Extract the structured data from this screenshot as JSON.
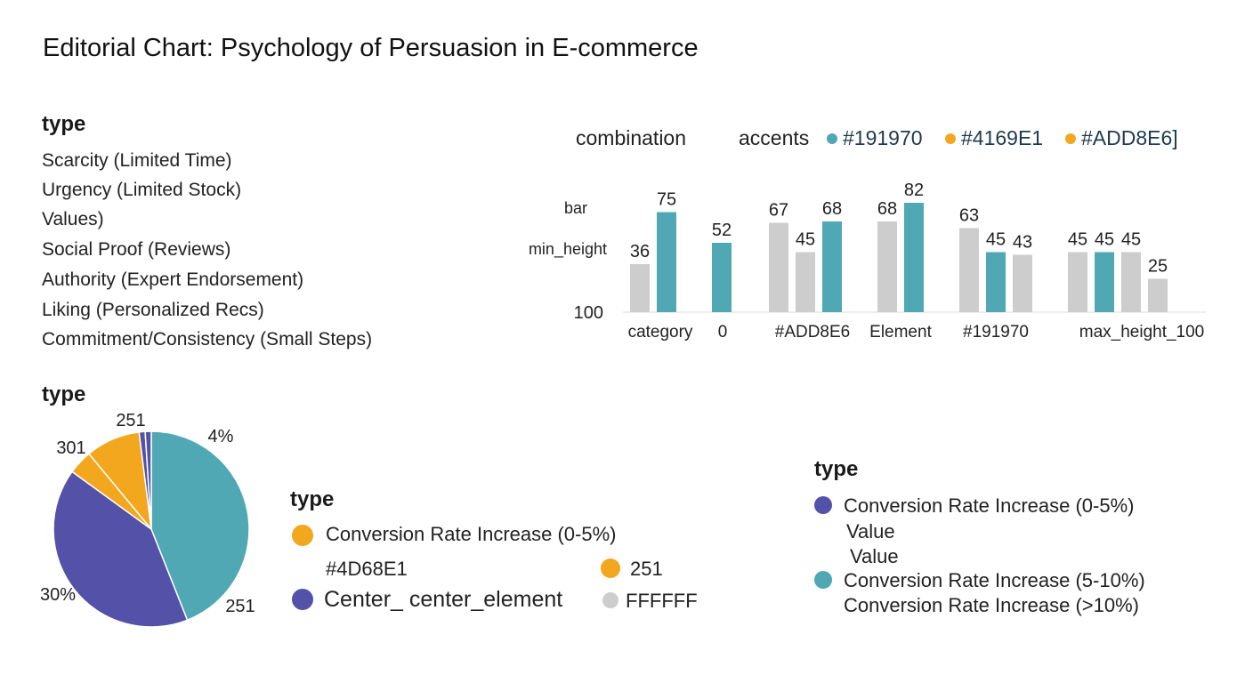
{
  "title": "Editorial Chart: Psychology of Persuasion in E-commerce",
  "colors": {
    "teal": "#4fa8b4",
    "gray": "#cdcdcd",
    "orange": "#f2a71f",
    "purple": "#5352a8",
    "text_dark": "#1e3a4c"
  },
  "type_list": {
    "heading": "type",
    "items": [
      "Scarcity (Limited Time)",
      "Urgency (Limited Stock)",
      "Values)",
      "Social Proof (Reviews)",
      "Authority (Expert Endorsement)",
      "Liking (Personalized Recs)",
      "Commitment/Consistency (Small Steps)"
    ]
  },
  "bar_header": {
    "label1": "combination",
    "label2": "accents",
    "accents": [
      {
        "text": "#191970",
        "color": "#4fa8b4"
      },
      {
        "text": "#4169E1",
        "color": "#f2a71f"
      },
      {
        "text": "#ADD8E6]",
        "color": "#f2a71f"
      }
    ]
  },
  "chart_data": [
    {
      "type": "bar",
      "y_tick_labels": [
        "bar",
        "min_height",
        "100"
      ],
      "categories": [
        "category",
        "0",
        "#ADD8E6",
        "Element",
        "#191970",
        "max_height_100"
      ],
      "bars": [
        {
          "group": 0,
          "color": "gray",
          "value": 36,
          "label": "36"
        },
        {
          "group": 0,
          "color": "teal",
          "value": 75,
          "label": "75"
        },
        {
          "group": 1,
          "color": "teal",
          "value": 52,
          "label": "52"
        },
        {
          "group": 2,
          "color": "gray",
          "value": 67,
          "label": "67"
        },
        {
          "group": 2,
          "color": "gray",
          "value": 45,
          "label": "45"
        },
        {
          "group": 2,
          "color": "teal",
          "value": 68,
          "label": "68"
        },
        {
          "group": 3,
          "color": "gray",
          "value": 68,
          "label": "68"
        },
        {
          "group": 3,
          "color": "teal",
          "value": 82,
          "label": "82"
        },
        {
          "group": 4,
          "color": "gray",
          "value": 63,
          "label": "63"
        },
        {
          "group": 4,
          "color": "teal",
          "value": 45,
          "label": "45"
        },
        {
          "group": 4,
          "color": "gray",
          "value": 43,
          "label": "43"
        },
        {
          "group": 5,
          "color": "gray",
          "value": 45,
          "label": "45"
        },
        {
          "group": 5,
          "color": "teal",
          "value": 45,
          "label": "45"
        },
        {
          "group": 5,
          "color": "gray",
          "value": 45,
          "label": "45"
        },
        {
          "group": 5,
          "color": "gray",
          "value": 25,
          "label": "25"
        }
      ],
      "grid": false
    },
    {
      "type": "pie",
      "slices": [
        {
          "value": 44,
          "color": "teal"
        },
        {
          "value": 41,
          "color": "purple"
        },
        {
          "value": 4,
          "color": "orange"
        },
        {
          "value": 9,
          "color": "orange"
        },
        {
          "value": 1,
          "color": "purple"
        },
        {
          "value": 1,
          "color": "purple"
        }
      ],
      "labels": [
        "251",
        "4%",
        "301",
        "30%",
        "251"
      ]
    }
  ],
  "pie_heading": "type",
  "legend_mid": {
    "heading": "type",
    "item1": "Conversion Rate Increase (0-5%)",
    "item2": "#4D68E1",
    "item3": "251",
    "item4": "Center_ center_element",
    "item5": "FFFFFF"
  },
  "legend_right": {
    "heading": "type",
    "item1": "Conversion Rate Increase (0-5%)",
    "item2": "Value",
    "item3": "Value",
    "item4": "Conversion Rate Increase (5-10%)",
    "item5": "Conversion Rate Increase (>10%)"
  }
}
